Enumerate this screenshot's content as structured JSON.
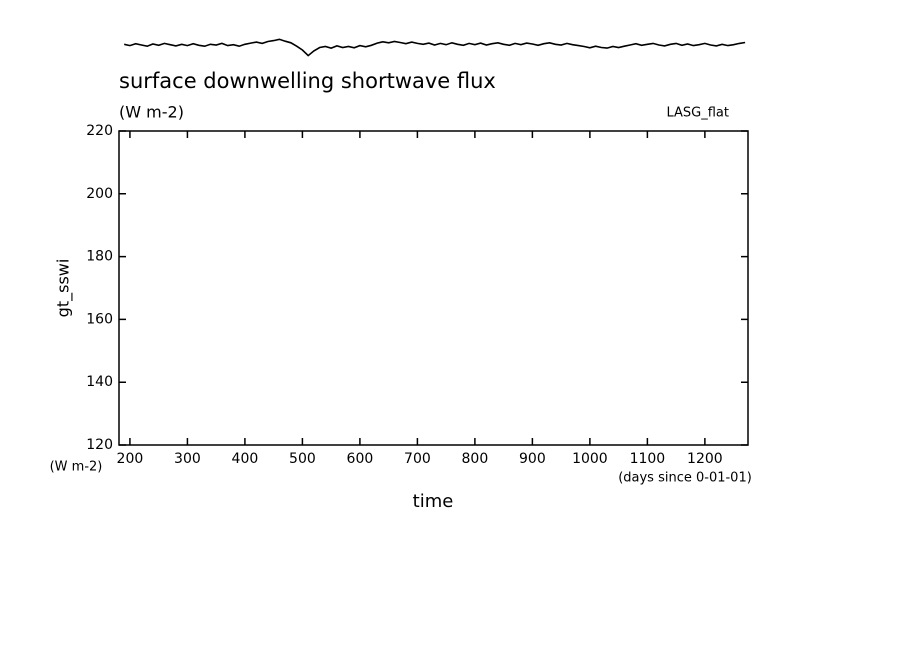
{
  "chart_data": {
    "type": "line",
    "title": "surface downwelling shortwave flux",
    "units": "(W m-2)",
    "source": "LASG_flat",
    "ylabel": "gt_sswi",
    "yunits": "(W m-2)",
    "xlabel": "time",
    "xunits": "(days since 0-01-01)",
    "xlim": [
      181,
      1275
    ],
    "ylim": [
      120,
      220
    ],
    "xticks": [
      200,
      300,
      400,
      500,
      600,
      700,
      800,
      900,
      1000,
      1100,
      1200
    ],
    "yticks": [
      120,
      140,
      160,
      180,
      200,
      220
    ],
    "x": [
      190,
      200,
      210,
      220,
      230,
      240,
      250,
      260,
      270,
      280,
      290,
      300,
      310,
      320,
      330,
      340,
      350,
      360,
      370,
      380,
      390,
      400,
      410,
      420,
      430,
      440,
      450,
      460,
      470,
      480,
      490,
      500,
      510,
      520,
      530,
      540,
      550,
      560,
      570,
      580,
      590,
      600,
      610,
      620,
      630,
      640,
      650,
      660,
      670,
      680,
      690,
      700,
      710,
      720,
      730,
      740,
      750,
      760,
      770,
      780,
      790,
      800,
      810,
      820,
      830,
      840,
      850,
      860,
      870,
      880,
      890,
      900,
      910,
      920,
      930,
      940,
      950,
      960,
      970,
      980,
      990,
      1000,
      1010,
      1020,
      1030,
      1040,
      1050,
      1060,
      1070,
      1080,
      1090,
      1100,
      1110,
      1120,
      1130,
      1140,
      1150,
      1160,
      1170,
      1180,
      1190,
      1200,
      1210,
      1220,
      1230,
      1240,
      1250,
      1260,
      1270
    ],
    "series": [
      {
        "name": "gt_sswi",
        "color": "#000000",
        "values": [
          247.6,
          247.2,
          247.8,
          247.4,
          247.0,
          247.7,
          247.3,
          247.9,
          247.5,
          247.1,
          247.6,
          247.2,
          247.8,
          247.3,
          247.0,
          247.6,
          247.4,
          247.9,
          247.2,
          247.5,
          247.0,
          247.6,
          248.0,
          248.3,
          247.9,
          248.5,
          248.8,
          249.2,
          248.6,
          248.1,
          247.0,
          245.8,
          244.0,
          245.5,
          246.6,
          246.9,
          246.4,
          247.1,
          246.6,
          246.9,
          246.5,
          247.2,
          246.8,
          247.3,
          248.0,
          248.4,
          248.1,
          248.5,
          248.2,
          247.8,
          248.3,
          247.9,
          247.6,
          248.0,
          247.4,
          247.9,
          247.5,
          248.1,
          247.6,
          247.3,
          247.9,
          247.5,
          248.0,
          247.4,
          247.8,
          248.1,
          247.6,
          247.3,
          247.9,
          247.5,
          248.0,
          247.7,
          247.3,
          247.8,
          248.1,
          247.6,
          247.4,
          247.9,
          247.5,
          247.2,
          246.9,
          246.5,
          247.0,
          246.6,
          246.4,
          246.9,
          246.6,
          247.0,
          247.4,
          247.8,
          247.3,
          247.6,
          247.9,
          247.4,
          247.1,
          247.6,
          247.9,
          247.3,
          247.7,
          247.2,
          247.5,
          247.9,
          247.4,
          247.1,
          247.6,
          247.2,
          247.5,
          247.9,
          248.2
        ]
      }
    ]
  }
}
